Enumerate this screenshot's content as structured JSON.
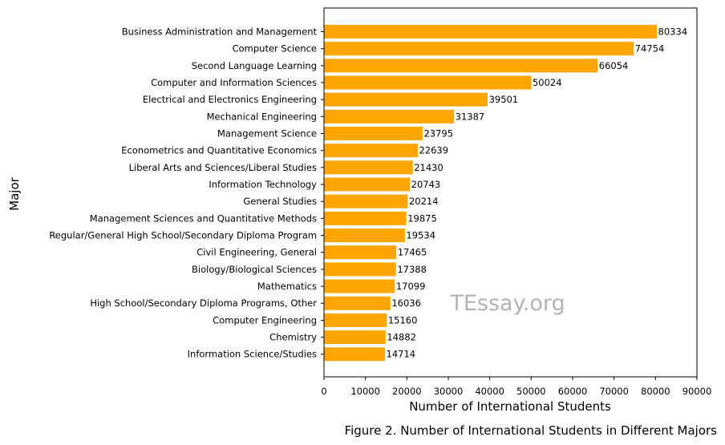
{
  "chart_data": {
    "type": "bar",
    "orientation": "horizontal",
    "categories": [
      "Business Administration and Management",
      "Computer Science",
      "Second Language Learning",
      "Computer and Information Sciences",
      "Electrical and Electronics Engineering",
      "Mechanical Engineering",
      "Management Science",
      "Econometrics and Quantitative Economics",
      "Liberal Arts and Sciences/Liberal Studies",
      "Information Technology",
      "General Studies",
      "Management Sciences and Quantitative Methods",
      "Regular/General High School/Secondary Diploma Program",
      "Civil Engineering, General",
      "Biology/Biological Sciences",
      "Mathematics",
      "High School/Secondary Diploma Programs, Other",
      "Computer Engineering",
      "Chemistry",
      "Information Science/Studies"
    ],
    "values": [
      80334,
      74754,
      66054,
      50024,
      39501,
      31387,
      23795,
      22639,
      21430,
      20743,
      20214,
      19875,
      19534,
      17465,
      17388,
      17099,
      16036,
      15160,
      14882,
      14714
    ],
    "xlabel": "Number of International Students",
    "ylabel": "Major",
    "xlim": [
      0,
      90000
    ],
    "xticks": [
      0,
      10000,
      20000,
      30000,
      40000,
      50000,
      60000,
      70000,
      80000,
      90000
    ],
    "xtick_labels": [
      "0",
      "10000",
      "20000",
      "30000",
      "40000",
      "50000",
      "60000",
      "70000",
      "80000",
      "90000"
    ],
    "bar_color": "#ffa500",
    "watermark": "TEssay.org",
    "caption": "Figure 2. Number of International Students in Different Majors"
  }
}
